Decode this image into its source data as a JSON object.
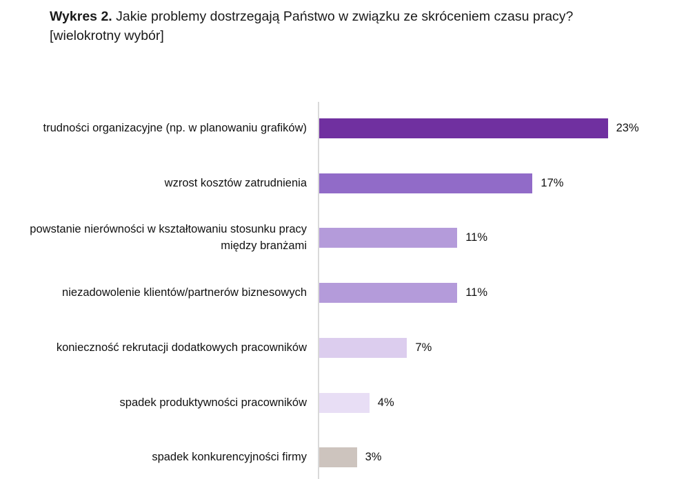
{
  "title": {
    "prefix": "Wykres 2.",
    "text": " Jakie problemy dostrzegają Państwo w związku ze skróceniem czasu pracy?",
    "subtitle": "[wielokrotny wybór]"
  },
  "chart_data": {
    "type": "bar",
    "orientation": "horizontal",
    "title": "Wykres 2. Jakie problemy dostrzegają Państwo w związku ze skróceniem czasu pracy? [wielokrotny wybór]",
    "xlabel": "",
    "ylabel": "",
    "xlim": [
      0,
      25
    ],
    "grid": false,
    "categories": [
      "trudności organizacyjne (np. w planowaniu grafików)",
      "wzrost kosztów zatrudnienia",
      "powstanie nierówności w kształtowaniu stosunku pracy między branżami",
      "niezadowolenie klientów/partnerów biznesowych",
      "konieczność rekrutacji dodatkowych pracowników",
      "spadek produktywności pracowników",
      "spadek konkurencyjności firmy"
    ],
    "values": [
      23,
      17,
      11,
      11,
      7,
      4,
      3
    ],
    "data_labels": [
      "23%",
      "17%",
      "11%",
      "11%",
      "7%",
      "4%",
      "3%"
    ],
    "colors": [
      "#7030a0",
      "#916bc8",
      "#b49bda",
      "#b49bda",
      "#dccdee",
      "#e8def5",
      "#cdc4be"
    ]
  }
}
